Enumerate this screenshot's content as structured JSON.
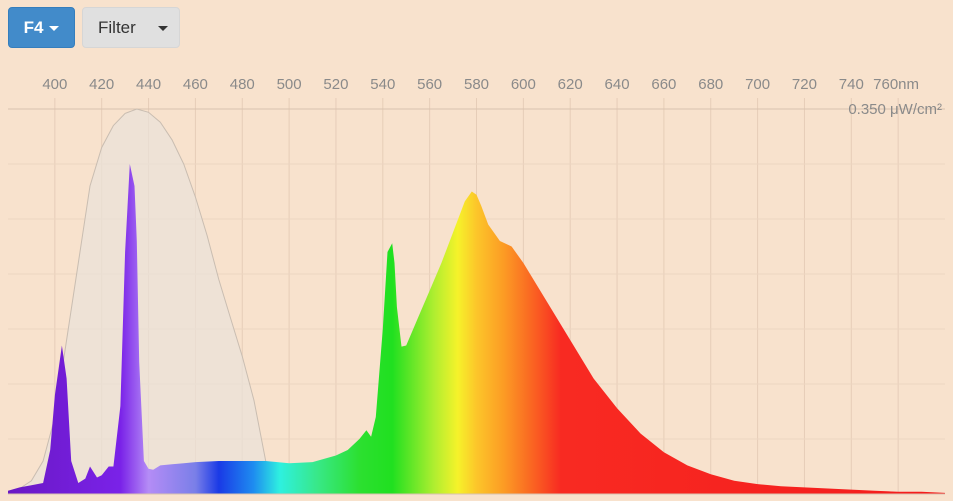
{
  "toolbar": {
    "illuminant_label": "F4",
    "filter_label": "Filter"
  },
  "chart_data": {
    "type": "area",
    "title": "",
    "x_unit": "nm",
    "y_unit": "μW/cm²",
    "x_ticks": [
      400,
      420,
      440,
      460,
      480,
      500,
      520,
      540,
      560,
      580,
      600,
      620,
      640,
      660,
      680,
      700,
      720,
      740,
      760
    ],
    "x_tick_labels": [
      "400",
      "420",
      "440",
      "460",
      "480",
      "500",
      "520",
      "540",
      "560",
      "580",
      "600",
      "620",
      "640",
      "660",
      "680",
      "700",
      "720",
      "740",
      "760nm"
    ],
    "y_max_label": "0.350 μW/cm²",
    "xlim": [
      380,
      780
    ],
    "ylim": [
      0,
      0.35
    ],
    "grid": true,
    "series": [
      {
        "id": "sensitivity",
        "color": "#e9e2da",
        "x": [
          380,
          385,
          390,
          395,
          400,
          405,
          410,
          415,
          420,
          425,
          430,
          435,
          440,
          445,
          450,
          455,
          460,
          465,
          470,
          475,
          480,
          485,
          490,
          495,
          500,
          505,
          510,
          515,
          520
        ],
        "y": [
          0.0,
          0.005,
          0.012,
          0.03,
          0.07,
          0.14,
          0.21,
          0.28,
          0.315,
          0.335,
          0.346,
          0.35,
          0.347,
          0.338,
          0.322,
          0.3,
          0.27,
          0.235,
          0.195,
          0.16,
          0.125,
          0.085,
          0.03,
          0.012,
          0.005,
          0.002,
          0.0,
          0.0,
          0.0
        ]
      },
      {
        "id": "F4",
        "x": [
          380,
          385,
          390,
          395,
          398,
          400,
          403,
          405,
          407,
          410,
          413,
          415,
          418,
          420,
          423,
          425,
          428,
          430,
          432,
          434,
          435,
          436,
          438,
          440,
          442,
          445,
          450,
          455,
          460,
          470,
          480,
          490,
          500,
          510,
          520,
          525,
          530,
          533,
          535,
          537,
          540,
          542,
          544,
          545,
          546,
          548,
          550,
          552,
          555,
          560,
          565,
          570,
          575,
          578,
          580,
          582,
          585,
          590,
          595,
          600,
          610,
          620,
          630,
          640,
          650,
          660,
          670,
          680,
          690,
          700,
          710,
          720,
          730,
          740,
          750,
          760,
          770,
          780
        ],
        "y": [
          0.003,
          0.006,
          0.008,
          0.01,
          0.04,
          0.09,
          0.135,
          0.105,
          0.03,
          0.01,
          0.014,
          0.025,
          0.015,
          0.017,
          0.025,
          0.025,
          0.08,
          0.22,
          0.3,
          0.28,
          0.23,
          0.12,
          0.03,
          0.023,
          0.022,
          0.026,
          0.027,
          0.028,
          0.029,
          0.03,
          0.03,
          0.03,
          0.028,
          0.029,
          0.035,
          0.04,
          0.05,
          0.058,
          0.052,
          0.07,
          0.15,
          0.22,
          0.228,
          0.21,
          0.17,
          0.134,
          0.135,
          0.145,
          0.16,
          0.185,
          0.21,
          0.238,
          0.266,
          0.275,
          0.272,
          0.262,
          0.245,
          0.23,
          0.225,
          0.21,
          0.175,
          0.14,
          0.105,
          0.078,
          0.055,
          0.038,
          0.026,
          0.018,
          0.012,
          0.009,
          0.007,
          0.006,
          0.005,
          0.004,
          0.003,
          0.002,
          0.002,
          0.001
        ]
      }
    ]
  }
}
